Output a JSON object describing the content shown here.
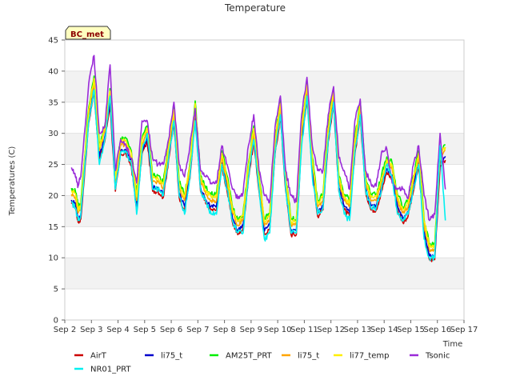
{
  "chart_data": {
    "type": "line",
    "title": "Temperature",
    "xlabel": "Time",
    "ylabel": "Temperatures (C)",
    "badge": "BC_met",
    "xlim": [
      2,
      17
    ],
    "ylim": [
      0,
      45
    ],
    "x_ticks": [
      {
        "v": 2,
        "label": "Sep 2"
      },
      {
        "v": 3,
        "label": "Sep 3"
      },
      {
        "v": 4,
        "label": "Sep 4"
      },
      {
        "v": 5,
        "label": "Sep 5"
      },
      {
        "v": 6,
        "label": "Sep 6"
      },
      {
        "v": 7,
        "label": "Sep 7"
      },
      {
        "v": 8,
        "label": "Sep 8"
      },
      {
        "v": 9,
        "label": "Sep 9"
      },
      {
        "v": 10,
        "label": "Sep 10"
      },
      {
        "v": 11,
        "label": "Sep 11"
      },
      {
        "v": 12,
        "label": "Sep 12"
      },
      {
        "v": 13,
        "label": "Sep 13"
      },
      {
        "v": 14,
        "label": "Sep 14"
      },
      {
        "v": 15,
        "label": "Sep 15"
      },
      {
        "v": 16,
        "label": "Sep 16"
      },
      {
        "v": 17,
        "label": "Sep 17"
      }
    ],
    "y_ticks": [
      0,
      5,
      10,
      15,
      20,
      25,
      30,
      35,
      40,
      45
    ],
    "grid": "horizontal bands",
    "legend_position": "bottom",
    "series": [
      {
        "name": "AirT",
        "color": "#cc0000",
        "offset": -1.3,
        "vol": 0.8,
        "x": [
          2.25,
          2.4,
          2.5,
          2.6,
          2.9,
          3.1,
          3.3,
          3.5,
          3.7,
          3.9,
          4.1,
          4.3,
          4.5,
          4.7,
          4.9,
          5.1,
          5.3,
          5.5,
          5.7,
          5.9,
          6.1,
          6.3,
          6.5,
          6.7,
          6.9,
          7.1,
          7.3,
          7.5,
          7.7,
          7.9,
          8.1,
          8.3,
          8.5,
          8.7,
          8.9,
          9.1,
          9.3,
          9.5,
          9.7,
          9.9,
          10.1,
          10.3,
          10.5,
          10.7,
          10.9,
          11.1,
          11.3,
          11.5,
          11.7,
          11.9,
          12.1,
          12.3,
          12.5,
          12.7,
          12.9,
          13.1,
          13.3,
          13.5,
          13.7,
          13.9,
          14.1,
          14.3,
          14.5,
          14.7,
          14.9,
          15.1,
          15.3,
          15.5,
          15.7,
          15.9,
          16.1,
          16.3
        ],
        "y": [
          20,
          19.5,
          17,
          17.5,
          33,
          38,
          27,
          30,
          36,
          22,
          28,
          28,
          26,
          19,
          28,
          30,
          22,
          22,
          21,
          27,
          33,
          21,
          19,
          24,
          34,
          22,
          20,
          19,
          19,
          26,
          22,
          17,
          15,
          16,
          24,
          30,
          22,
          15,
          16,
          28,
          34,
          22,
          15,
          15,
          30,
          37,
          25,
          18,
          19,
          30,
          36,
          22,
          19,
          18,
          28,
          34,
          22,
          19,
          19,
          22,
          25,
          24,
          19,
          17,
          18,
          22,
          26,
          15,
          11,
          11,
          26,
          27
        ]
      },
      {
        "name": "li75_t",
        "color": "#0000cc",
        "offset": -0.7,
        "vol": 0.6,
        "x": [
          2.25,
          2.4,
          2.5,
          2.6,
          2.9,
          3.1,
          3.3,
          3.5,
          3.7,
          3.9,
          4.1,
          4.3,
          4.5,
          4.7,
          4.9,
          5.1,
          5.3,
          5.5,
          5.7,
          5.9,
          6.1,
          6.3,
          6.5,
          6.7,
          6.9,
          7.1,
          7.3,
          7.5,
          7.7,
          7.9,
          8.1,
          8.3,
          8.5,
          8.7,
          8.9,
          9.1,
          9.3,
          9.5,
          9.7,
          9.9,
          10.1,
          10.3,
          10.5,
          10.7,
          10.9,
          11.1,
          11.3,
          11.5,
          11.7,
          11.9,
          12.1,
          12.3,
          12.5,
          12.7,
          12.9,
          13.1,
          13.3,
          13.5,
          13.7,
          13.9,
          14.1,
          14.3,
          14.5,
          14.7,
          14.9,
          15.1,
          15.3,
          15.5,
          15.7,
          15.9,
          16.1,
          16.3
        ],
        "y": [
          20,
          19.5,
          17,
          17.5,
          33,
          38,
          27,
          30,
          36,
          22,
          28,
          28,
          26,
          19,
          28,
          30,
          22,
          22,
          21,
          27,
          33,
          21,
          19,
          24,
          34,
          22,
          20,
          19,
          19,
          26,
          22,
          17,
          15,
          16,
          24,
          30,
          22,
          15,
          16,
          28,
          34,
          22,
          15,
          15,
          30,
          37,
          25,
          18,
          19,
          30,
          36,
          22,
          19,
          18,
          28,
          34,
          22,
          19,
          19,
          22,
          25,
          24,
          19,
          17,
          18,
          22,
          26,
          15,
          11,
          11,
          26,
          27
        ]
      },
      {
        "name": "AM25T_PRT",
        "color": "#00ee00",
        "offset": 1.2,
        "vol": 1.0,
        "x": [
          2.25,
          2.4,
          2.5,
          2.6,
          2.9,
          3.1,
          3.3,
          3.5,
          3.7,
          3.9,
          4.1,
          4.3,
          4.5,
          4.7,
          4.9,
          5.1,
          5.3,
          5.5,
          5.7,
          5.9,
          6.1,
          6.3,
          6.5,
          6.7,
          6.9,
          7.1,
          7.3,
          7.5,
          7.7,
          7.9,
          8.1,
          8.3,
          8.5,
          8.7,
          8.9,
          9.1,
          9.3,
          9.5,
          9.7,
          9.9,
          10.1,
          10.3,
          10.5,
          10.7,
          10.9,
          11.1,
          11.3,
          11.5,
          11.7,
          11.9,
          12.1,
          12.3,
          12.5,
          12.7,
          12.9,
          13.1,
          13.3,
          13.5,
          13.7,
          13.9,
          14.1,
          14.3,
          14.5,
          14.7,
          14.9,
          15.1,
          15.3,
          15.5,
          15.7,
          15.9,
          16.1,
          16.3
        ],
        "y": [
          20,
          19.5,
          17,
          17.5,
          33,
          38,
          27,
          30,
          36,
          22,
          28,
          28,
          26,
          19,
          28,
          30,
          22,
          22,
          21,
          27,
          33,
          21,
          19,
          24,
          34,
          22,
          20,
          19,
          19,
          26,
          22,
          17,
          15,
          16,
          24,
          30,
          22,
          15,
          16,
          28,
          34,
          22,
          15,
          15,
          30,
          37,
          25,
          18,
          19,
          30,
          36,
          22,
          19,
          18,
          28,
          34,
          22,
          19,
          19,
          22,
          25,
          24,
          19,
          17,
          18,
          22,
          26,
          15,
          11,
          11,
          26,
          27
        ]
      },
      {
        "name": "li75_t",
        "color": "#ffa500",
        "offset": 0.2,
        "vol": 0.7,
        "x": [
          2.25,
          2.4,
          2.5,
          2.6,
          2.9,
          3.1,
          3.3,
          3.5,
          3.7,
          3.9,
          4.1,
          4.3,
          4.5,
          4.7,
          4.9,
          5.1,
          5.3,
          5.5,
          5.7,
          5.9,
          6.1,
          6.3,
          6.5,
          6.7,
          6.9,
          7.1,
          7.3,
          7.5,
          7.7,
          7.9,
          8.1,
          8.3,
          8.5,
          8.7,
          8.9,
          9.1,
          9.3,
          9.5,
          9.7,
          9.9,
          10.1,
          10.3,
          10.5,
          10.7,
          10.9,
          11.1,
          11.3,
          11.5,
          11.7,
          11.9,
          12.1,
          12.3,
          12.5,
          12.7,
          12.9,
          13.1,
          13.3,
          13.5,
          13.7,
          13.9,
          14.1,
          14.3,
          14.5,
          14.7,
          14.9,
          15.1,
          15.3,
          15.5,
          15.7,
          15.9,
          16.1,
          16.3
        ],
        "y": [
          20,
          19.5,
          17,
          17.5,
          33,
          38,
          27,
          30,
          36,
          22,
          28,
          28,
          26,
          19,
          28,
          30,
          22,
          22,
          21,
          27,
          33,
          21,
          19,
          24,
          34,
          22,
          20,
          19,
          19,
          26,
          22,
          17,
          15,
          16,
          24,
          30,
          22,
          15,
          16,
          28,
          34,
          22,
          15,
          15,
          30,
          37,
          25,
          18,
          19,
          30,
          36,
          22,
          19,
          18,
          28,
          34,
          22,
          19,
          19,
          22,
          25,
          24,
          19,
          17,
          18,
          22,
          26,
          15,
          11,
          11,
          26,
          27
        ]
      },
      {
        "name": "li77_temp",
        "color": "#ffee00",
        "offset": 0.8,
        "vol": 0.7,
        "x": [
          2.25,
          2.4,
          2.5,
          2.6,
          2.9,
          3.1,
          3.3,
          3.5,
          3.7,
          3.9,
          4.1,
          4.3,
          4.5,
          4.7,
          4.9,
          5.1,
          5.3,
          5.5,
          5.7,
          5.9,
          6.1,
          6.3,
          6.5,
          6.7,
          6.9,
          7.1,
          7.3,
          7.5,
          7.7,
          7.9,
          8.1,
          8.3,
          8.5,
          8.7,
          8.9,
          9.1,
          9.3,
          9.5,
          9.7,
          9.9,
          10.1,
          10.3,
          10.5,
          10.7,
          10.9,
          11.1,
          11.3,
          11.5,
          11.7,
          11.9,
          12.1,
          12.3,
          12.5,
          12.7,
          12.9,
          13.1,
          13.3,
          13.5,
          13.7,
          13.9,
          14.1,
          14.3,
          14.5,
          14.7,
          14.9,
          15.1,
          15.3,
          15.5,
          15.7,
          15.9,
          16.1,
          16.3
        ],
        "y": [
          20,
          19.5,
          17,
          17.5,
          33,
          38,
          27,
          30,
          36,
          22,
          28,
          28,
          26,
          19,
          28,
          30,
          22,
          22,
          21,
          27,
          33,
          21,
          19,
          24,
          34,
          22,
          20,
          19,
          19,
          26,
          22,
          17,
          15,
          16,
          24,
          30,
          22,
          15,
          16,
          28,
          34,
          22,
          15,
          15,
          30,
          37,
          25,
          18,
          19,
          30,
          36,
          22,
          19,
          18,
          28,
          34,
          22,
          19,
          19,
          22,
          25,
          24,
          19,
          17,
          18,
          22,
          26,
          15,
          11,
          11,
          26,
          27
        ]
      },
      {
        "name": "Tsonic",
        "color": "#9a2bd8",
        "offset": 0,
        "vol": 0.9,
        "x": [
          2.25,
          2.4,
          2.5,
          2.6,
          2.9,
          3.1,
          3.3,
          3.5,
          3.7,
          3.9,
          4.1,
          4.3,
          4.5,
          4.7,
          4.9,
          5.1,
          5.3,
          5.5,
          5.7,
          5.9,
          6.1,
          6.3,
          6.5,
          6.7,
          6.9,
          7.1,
          7.3,
          7.5,
          7.7,
          7.9,
          8.1,
          8.3,
          8.5,
          8.7,
          8.9,
          9.1,
          9.3,
          9.5,
          9.7,
          9.9,
          10.1,
          10.3,
          10.5,
          10.7,
          10.9,
          11.1,
          11.3,
          11.5,
          11.7,
          11.9,
          12.1,
          12.3,
          12.5,
          12.7,
          12.9,
          13.1,
          13.3,
          13.5,
          13.7,
          13.9,
          14.1,
          14.3,
          14.5,
          14.7,
          14.9,
          15.1,
          15.3,
          15.5,
          15.7,
          15.9,
          16.1,
          16.3
        ],
        "y": [
          24.5,
          23,
          21.5,
          23,
          38,
          42.5,
          30,
          31,
          41,
          24,
          29,
          28,
          26,
          22,
          32,
          32,
          26,
          25,
          25,
          29,
          35,
          25,
          23,
          28,
          34,
          24,
          23,
          22,
          22,
          28,
          25,
          21,
          19.5,
          20.5,
          28,
          33,
          24,
          20,
          19,
          31,
          36,
          24,
          20,
          19,
          33,
          39,
          28,
          24,
          24,
          33,
          37.5,
          26,
          24,
          21,
          32,
          35.5,
          24,
          22,
          21.5,
          27,
          27.5,
          22,
          21,
          21,
          19.5,
          25,
          28,
          20,
          16,
          17,
          30,
          21
        ]
      },
      {
        "name": "NR01_PRT",
        "color": "#00f0f0",
        "offset": 0,
        "vol": 1.0,
        "x": [
          2.25,
          2.4,
          2.5,
          2.6,
          2.9,
          3.1,
          3.3,
          3.5,
          3.7,
          3.9,
          4.1,
          4.3,
          4.5,
          4.7,
          4.9,
          5.1,
          5.3,
          5.5,
          5.7,
          5.9,
          6.1,
          6.3,
          6.5,
          6.7,
          6.9,
          7.1,
          7.3,
          7.5,
          7.7,
          7.9,
          8.1,
          8.3,
          8.5,
          8.7,
          8.9,
          9.1,
          9.3,
          9.5,
          9.7,
          9.9,
          10.1,
          10.3,
          10.5,
          10.7,
          10.9,
          11.1,
          11.3,
          11.5,
          11.7,
          11.9,
          12.1,
          12.3,
          12.5,
          12.7,
          12.9,
          13.1,
          13.3,
          13.5,
          13.7,
          13.9,
          14.1,
          14.3,
          14.5,
          14.7,
          14.9,
          15.1,
          15.3,
          15.5,
          15.7,
          15.9,
          16.1,
          16.3
        ],
        "y": [
          19,
          18,
          16,
          17,
          32,
          37,
          25,
          29,
          36,
          21,
          27,
          27,
          25,
          17,
          27,
          30,
          21,
          21,
          20,
          26,
          32,
          20,
          17,
          23,
          32,
          21,
          19,
          17,
          17,
          25,
          21,
          16,
          14,
          14,
          23,
          29,
          21,
          13,
          14,
          27,
          33,
          21,
          14,
          14,
          28,
          36,
          23,
          17,
          18,
          29,
          35,
          21,
          17,
          16,
          27,
          33,
          21,
          18,
          18,
          21,
          25,
          23,
          17,
          16,
          17,
          21,
          25,
          13,
          10,
          10,
          28,
          16
        ]
      }
    ]
  },
  "legend": [
    {
      "name": "AirT",
      "color": "#cc0000"
    },
    {
      "name": "li75_t",
      "color": "#0000cc"
    },
    {
      "name": "AM25T_PRT",
      "color": "#00ee00"
    },
    {
      "name": "li75_t",
      "color": "#ffa500"
    },
    {
      "name": "li77_temp",
      "color": "#ffee00"
    },
    {
      "name": "Tsonic",
      "color": "#9a2bd8"
    },
    {
      "name": "NR01_PRT",
      "color": "#00f0f0"
    }
  ]
}
